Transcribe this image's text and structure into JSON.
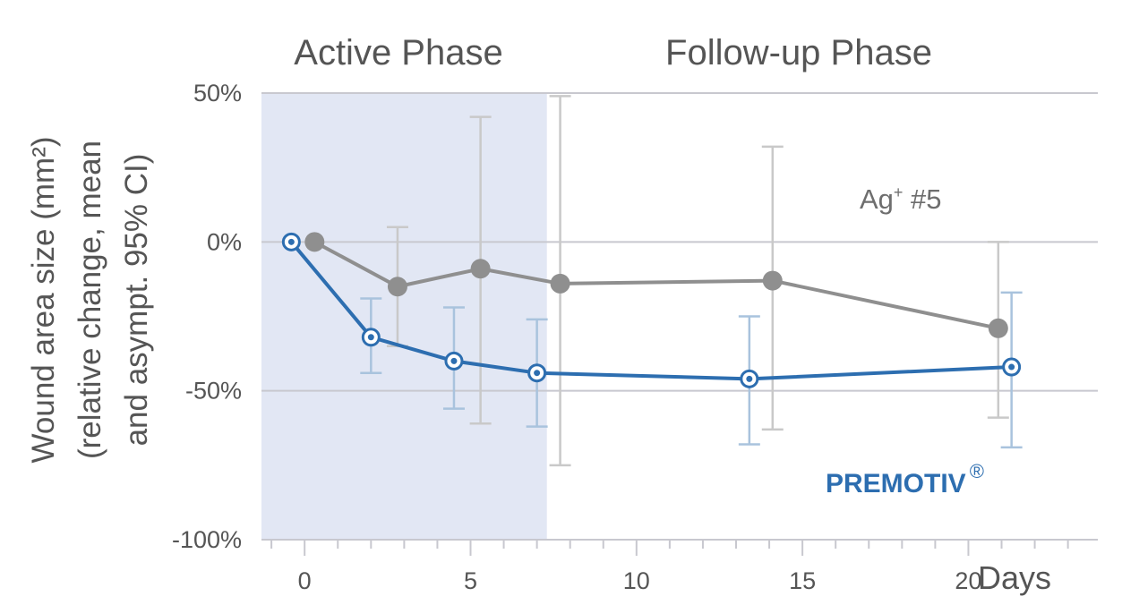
{
  "chart_data": {
    "type": "line",
    "ylabel_lines": [
      "Wound area size (mm²)",
      "(relative change, mean",
      "and asympt. 95% CI)"
    ],
    "xlabel": "Days",
    "xlim": [
      -1.3,
      23.9
    ],
    "ylim": [
      -100,
      50
    ],
    "x_ticks": [
      0,
      5,
      10,
      15,
      20
    ],
    "x_tick_labels": [
      "0",
      "5",
      "10",
      "15",
      "20"
    ],
    "y_ticks": [
      50,
      0,
      -50,
      -100
    ],
    "y_tick_labels": [
      "50%",
      "0%",
      "-50%",
      "-100%"
    ],
    "grid": "horizontal",
    "phases": [
      {
        "name": "Active Phase",
        "x_start": -1.3,
        "x_end": 7.3,
        "shaded": true,
        "color": "#e2e7f4"
      },
      {
        "name": "Follow-up Phase",
        "x_start": 7.3,
        "x_end": 23.9,
        "shaded": false
      }
    ],
    "series": [
      {
        "name": "Ag⁺ #5",
        "label_base": "Ag",
        "label_sup": "+",
        "label_rest": " #5",
        "color": "#8f8f8f",
        "error_color": "#c9c9c9",
        "marker": "filled",
        "x": [
          0.3,
          2.8,
          5.3,
          7.7,
          14.1,
          20.9
        ],
        "y": [
          0,
          -15,
          -9,
          -14,
          -13,
          -29
        ],
        "ci_low": [
          null,
          -35,
          -61,
          -75,
          -63,
          -59
        ],
        "ci_high": [
          null,
          5,
          42,
          49,
          32,
          0
        ]
      },
      {
        "name": "PREMOTIV",
        "label_base": "PREMOTIV",
        "label_sup": "®",
        "color": "#2d6eb0",
        "error_color": "#a9c3dd",
        "marker": "hollow",
        "x": [
          -0.4,
          2.0,
          4.5,
          7.0,
          13.4,
          21.3
        ],
        "y": [
          0,
          -32,
          -40,
          -44,
          -46,
          -42
        ],
        "ci_low": [
          null,
          -44,
          -56,
          -62,
          -68,
          -69
        ],
        "ci_high": [
          null,
          -19,
          -22,
          -26,
          -25,
          -17
        ]
      }
    ]
  },
  "colors": {
    "axis": "#c8c8cf",
    "grid": "#c8c8cf",
    "text": "#555555"
  }
}
